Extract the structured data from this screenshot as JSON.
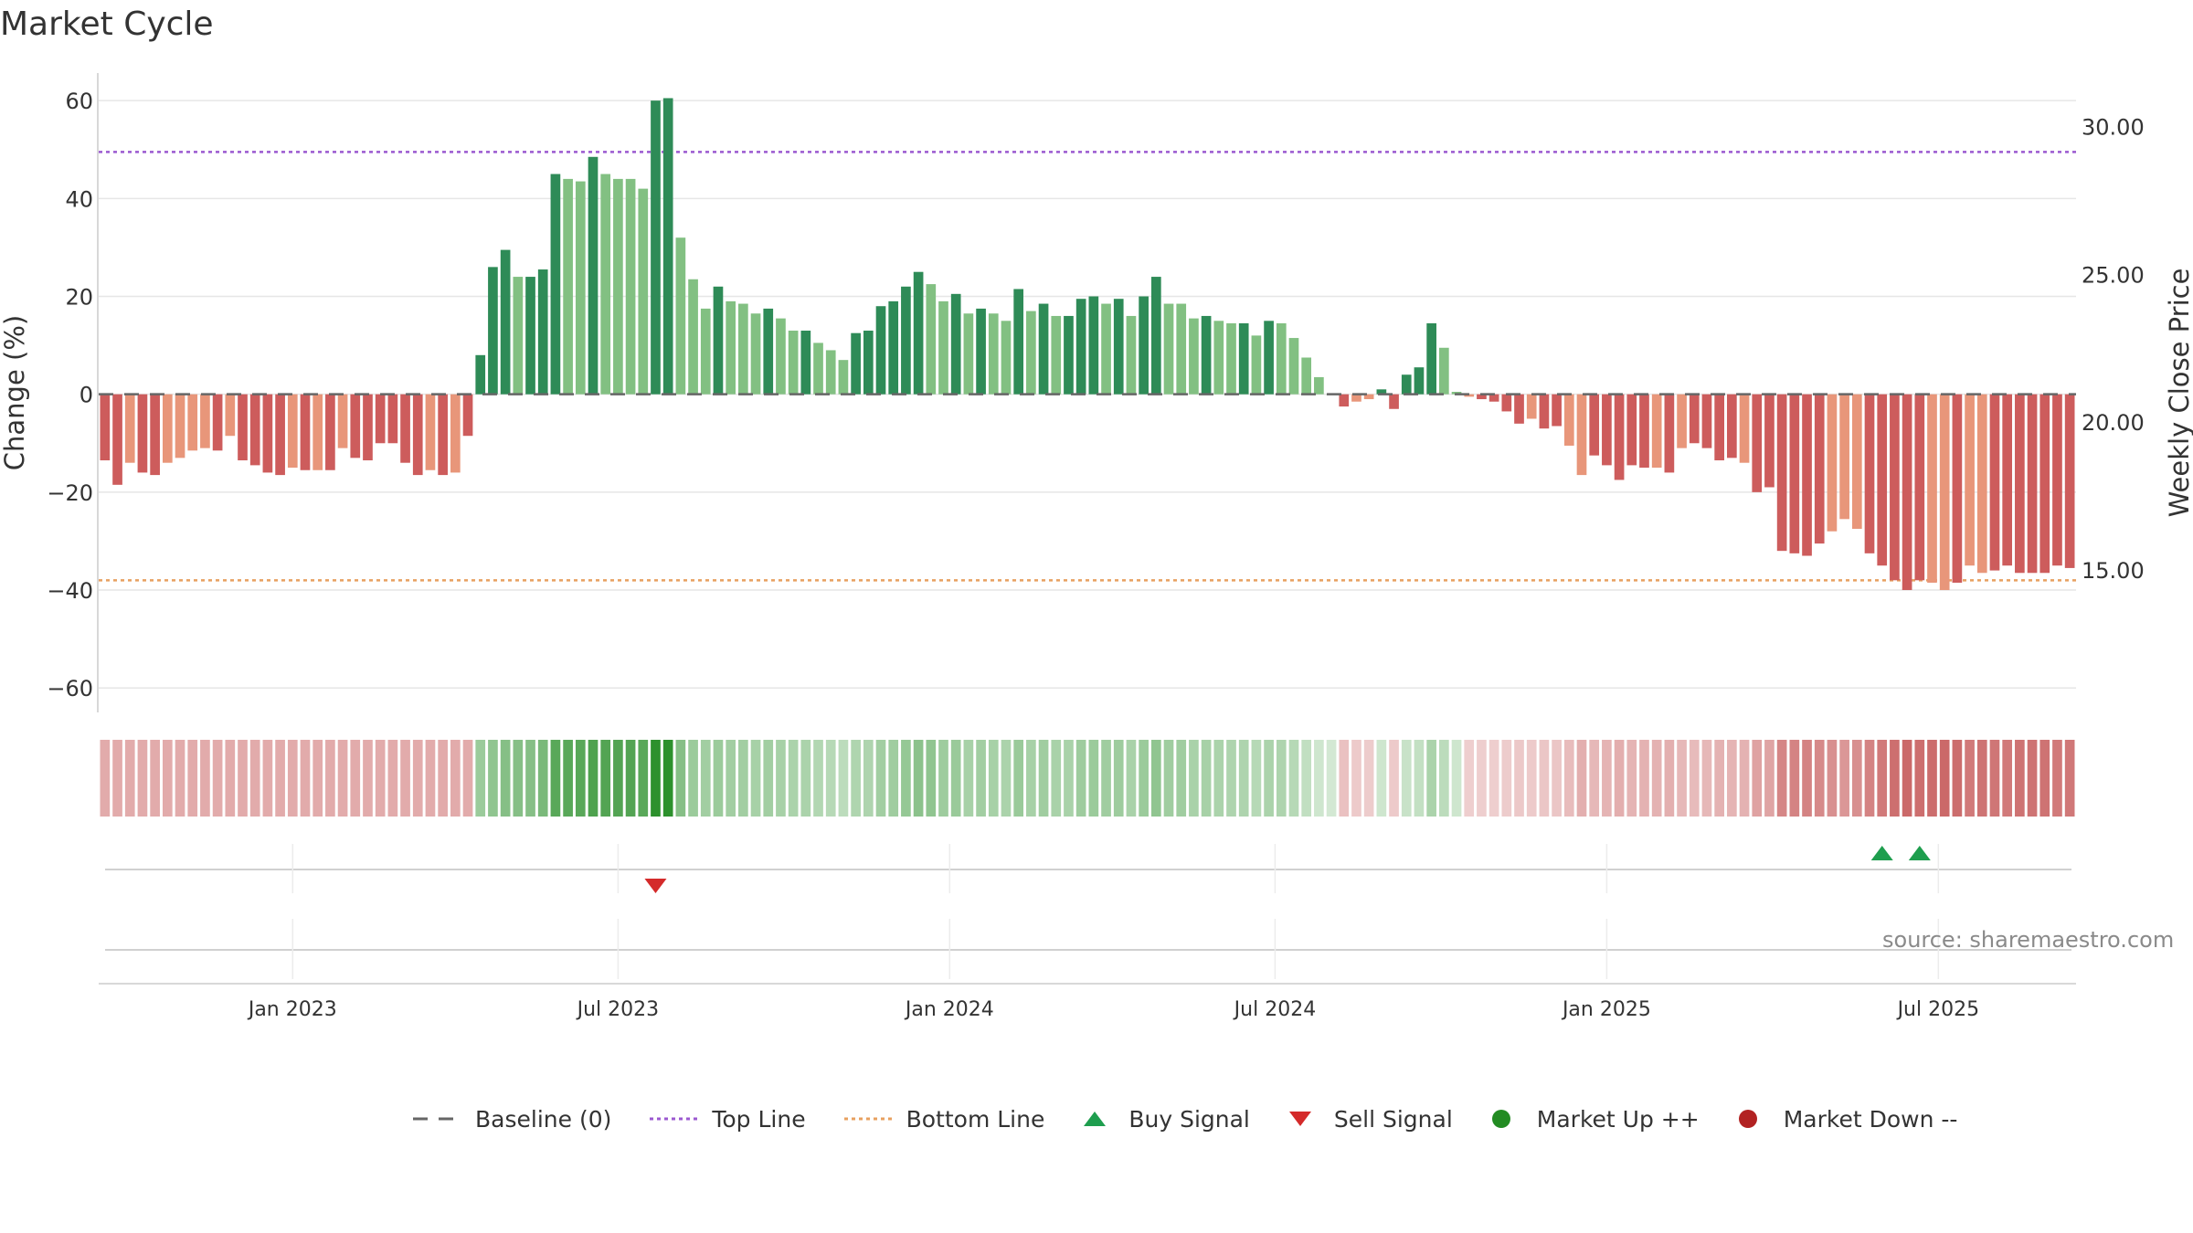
{
  "chart_data": {
    "type": "bar",
    "title": "Market Cycle",
    "ylabel": "Change (%)",
    "ylabel_right": "Weekly Close Price",
    "ylim": [
      -65,
      66
    ],
    "ylim_right": [
      10.18,
      31.87
    ],
    "yticks": [
      60,
      40,
      20,
      0,
      -20,
      -40,
      -60
    ],
    "yticks_right": [
      "30.00",
      "25.00",
      "20.00",
      "15.00"
    ],
    "xtick_labels": [
      "Jan 2023",
      "Jul 2023",
      "Jan 2024",
      "Jul 2024",
      "Jan 2025",
      "Jul 2025"
    ],
    "xtick_weeks": [
      15,
      41,
      67.5,
      93.5,
      120,
      146.5
    ],
    "top_line": 49.5,
    "bottom_line": -38,
    "grid": true,
    "legend_position": "bottom",
    "colors": {
      "strong_up": "#2e8b57",
      "weak_up": "#82c082",
      "weak_down": "#e8967a",
      "strong_down": "#cd5c5c",
      "top_line": "#9b59d0",
      "bottom_line": "#e8a060",
      "baseline": "#666666",
      "buy": "#1e9e4e",
      "sell": "#d42a2a",
      "market_up": "#228b22",
      "market_down": "#b22222"
    },
    "values": [
      -13.5,
      -18.5,
      -14,
      -16,
      -16.5,
      -14,
      -13,
      -11.5,
      -11,
      -11.5,
      -8.5,
      -13.5,
      -14.5,
      -16,
      -16.5,
      -15,
      -15.5,
      -15.5,
      -15.5,
      -11,
      -13,
      -13.5,
      -10,
      -10,
      -14,
      -16.5,
      -15.5,
      -16.5,
      -16,
      -8.5,
      8,
      26,
      29.5,
      24,
      24,
      25.5,
      45,
      44,
      43.5,
      48.5,
      45,
      44,
      44,
      42,
      60,
      60.5,
      32,
      23.5,
      17.5,
      22,
      19,
      18.5,
      16.5,
      17.5,
      15.5,
      13,
      13,
      10.5,
      9,
      7,
      12.5,
      13,
      18,
      19,
      22,
      25,
      22.5,
      19,
      20.5,
      16.5,
      17.5,
      16.5,
      15,
      21.5,
      17,
      18.5,
      16,
      16,
      19.5,
      20,
      18.5,
      19.5,
      16,
      20,
      24,
      18.5,
      18.5,
      15.5,
      16,
      15,
      14.5,
      14.5,
      12,
      15,
      14.5,
      11.5,
      7.5,
      3.5,
      0,
      -2.5,
      -1.5,
      -1,
      1,
      -3,
      4,
      5.5,
      14.5,
      9.5,
      0.5,
      -0.5,
      -1,
      -1.5,
      -3.5,
      -6,
      -5,
      -7,
      -6.5,
      -10.5,
      -16.5,
      -12.5,
      -14.5,
      -17.5,
      -14.5,
      -15,
      -15,
      -16,
      -11,
      -10,
      -11,
      -13.5,
      -13,
      -14,
      -20,
      -19,
      -32,
      -32.5,
      -33,
      -30.5,
      -28,
      -25.5,
      -27.5,
      -32.5,
      -35,
      -38,
      -40,
      -38,
      -38.5,
      -40,
      -38.5,
      -35,
      -36.5,
      -36,
      -35,
      -36.5,
      -36.5,
      -36.5,
      -35,
      -35.5
    ],
    "tone": [
      "S",
      "S",
      "W",
      "S",
      "S",
      "W",
      "W",
      "W",
      "W",
      "S",
      "W",
      "S",
      "S",
      "S",
      "S",
      "W",
      "S",
      "W",
      "S",
      "W",
      "S",
      "S",
      "S",
      "S",
      "S",
      "S",
      "W",
      "S",
      "W",
      "S",
      "S",
      "S",
      "S",
      "W",
      "S",
      "S",
      "S",
      "W",
      "W",
      "S",
      "W",
      "W",
      "W",
      "W",
      "S",
      "S",
      "W",
      "W",
      "W",
      "S",
      "W",
      "W",
      "W",
      "S",
      "W",
      "W",
      "S",
      "W",
      "W",
      "W",
      "S",
      "S",
      "S",
      "S",
      "S",
      "S",
      "W",
      "W",
      "S",
      "W",
      "S",
      "W",
      "W",
      "S",
      "W",
      "S",
      "W",
      "S",
      "S",
      "S",
      "W",
      "S",
      "W",
      "S",
      "S",
      "W",
      "W",
      "W",
      "S",
      "W",
      "W",
      "S",
      "W",
      "S",
      "W",
      "W",
      "W",
      "W",
      "W",
      "S",
      "W",
      "W",
      "S",
      "S",
      "S",
      "S",
      "S",
      "W",
      "W",
      "W",
      "S",
      "S",
      "S",
      "S",
      "W",
      "S",
      "S",
      "W",
      "W",
      "S",
      "S",
      "S",
      "S",
      "S",
      "W",
      "S",
      "W",
      "S",
      "S",
      "S",
      "S",
      "W",
      "S",
      "S",
      "S",
      "S",
      "S",
      "S",
      "W",
      "W",
      "W",
      "S",
      "S",
      "S",
      "S",
      "S",
      "W",
      "W",
      "S",
      "W",
      "W",
      "S",
      "S",
      "S",
      "S",
      "S",
      "S",
      "S",
      "W",
      "S"
    ],
    "band_opacity": [
      0.38,
      0.38,
      0.38,
      0.38,
      0.38,
      0.38,
      0.38,
      0.38,
      0.38,
      0.38,
      0.38,
      0.38,
      0.38,
      0.38,
      0.38,
      0.38,
      0.38,
      0.38,
      0.38,
      0.38,
      0.38,
      0.38,
      0.38,
      0.38,
      0.38,
      0.38,
      0.38,
      0.38,
      0.38,
      0.38,
      0.45,
      0.5,
      0.55,
      0.55,
      0.55,
      0.6,
      0.75,
      0.75,
      0.75,
      0.8,
      0.78,
      0.78,
      0.78,
      0.75,
      0.95,
      0.95,
      0.55,
      0.45,
      0.42,
      0.45,
      0.42,
      0.42,
      0.4,
      0.42,
      0.4,
      0.38,
      0.38,
      0.35,
      0.33,
      0.3,
      0.36,
      0.37,
      0.42,
      0.43,
      0.48,
      0.52,
      0.5,
      0.44,
      0.46,
      0.4,
      0.42,
      0.4,
      0.38,
      0.46,
      0.4,
      0.43,
      0.39,
      0.39,
      0.44,
      0.45,
      0.43,
      0.44,
      0.39,
      0.45,
      0.5,
      0.43,
      0.43,
      0.39,
      0.4,
      0.38,
      0.37,
      0.37,
      0.33,
      0.38,
      0.37,
      0.33,
      0.28,
      0.22,
      0.2,
      0.28,
      0.24,
      0.23,
      0.22,
      0.24,
      0.25,
      0.27,
      0.38,
      0.3,
      0.22,
      0.22,
      0.22,
      0.22,
      0.23,
      0.25,
      0.24,
      0.26,
      0.26,
      0.3,
      0.36,
      0.32,
      0.34,
      0.37,
      0.34,
      0.35,
      0.35,
      0.36,
      0.32,
      0.31,
      0.32,
      0.35,
      0.34,
      0.35,
      0.42,
      0.41,
      0.55,
      0.56,
      0.56,
      0.53,
      0.5,
      0.47,
      0.5,
      0.56,
      0.6,
      0.65,
      0.68,
      0.65,
      0.66,
      0.68,
      0.66,
      0.6,
      0.63,
      0.62,
      0.6,
      0.63,
      0.63,
      0.63,
      0.6,
      0.61
    ],
    "buy_signals_week": [
      142,
      145
    ],
    "sell_signals_week": [
      44
    ]
  },
  "source_note": "source: sharemaestro.com",
  "legend": {
    "baseline": "Baseline (0)",
    "top_line": "Top Line",
    "bottom_line": "Bottom Line",
    "buy": "Buy Signal",
    "sell": "Sell Signal",
    "market_up": "Market Up ++",
    "market_down": "Market Down --"
  }
}
